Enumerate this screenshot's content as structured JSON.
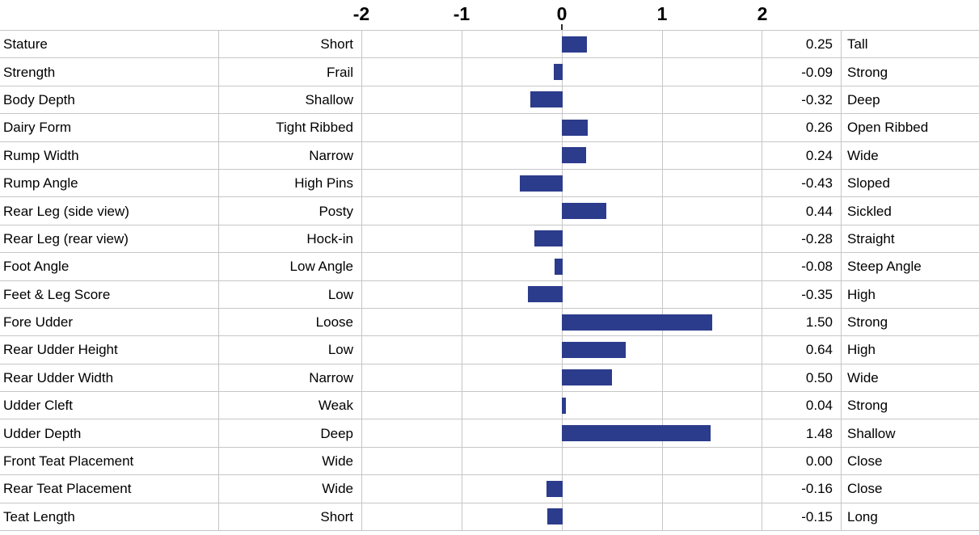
{
  "chart_data": {
    "type": "bar",
    "orientation": "horizontal",
    "title": "",
    "xlabel": "",
    "ylabel": "",
    "xlim": [
      -2,
      2
    ],
    "axis_tick_labels": [
      "-2",
      "-1",
      "0",
      "1",
      "2"
    ],
    "grid": true,
    "bar_color": "#2c3c8c",
    "grid_color": "#c6c6c6",
    "rows": [
      {
        "trait": "Stature",
        "low": "Short",
        "value": 0.25,
        "value_label": "0.25",
        "high": "Tall"
      },
      {
        "trait": "Strength",
        "low": "Frail",
        "value": -0.09,
        "value_label": "-0.09",
        "high": "Strong"
      },
      {
        "trait": "Body Depth",
        "low": "Shallow",
        "value": -0.32,
        "value_label": "-0.32",
        "high": "Deep"
      },
      {
        "trait": "Dairy Form",
        "low": "Tight Ribbed",
        "value": 0.26,
        "value_label": "0.26",
        "high": "Open Ribbed"
      },
      {
        "trait": "Rump Width",
        "low": "Narrow",
        "value": 0.24,
        "value_label": "0.24",
        "high": "Wide"
      },
      {
        "trait": "Rump Angle",
        "low": "High Pins",
        "value": -0.43,
        "value_label": "-0.43",
        "high": "Sloped"
      },
      {
        "trait": "Rear Leg (side view)",
        "low": "Posty",
        "value": 0.44,
        "value_label": "0.44",
        "high": "Sickled"
      },
      {
        "trait": "Rear Leg (rear view)",
        "low": "Hock-in",
        "value": -0.28,
        "value_label": "-0.28",
        "high": "Straight"
      },
      {
        "trait": "Foot Angle",
        "low": "Low Angle",
        "value": -0.08,
        "value_label": "-0.08",
        "high": "Steep Angle"
      },
      {
        "trait": "Feet & Leg Score",
        "low": "Low",
        "value": -0.35,
        "value_label": "-0.35",
        "high": "High"
      },
      {
        "trait": "Fore Udder",
        "low": "Loose",
        "value": 1.5,
        "value_label": "1.50",
        "high": "Strong"
      },
      {
        "trait": "Rear Udder Height",
        "low": "Low",
        "value": 0.64,
        "value_label": "0.64",
        "high": "High"
      },
      {
        "trait": "Rear Udder Width",
        "low": "Narrow",
        "value": 0.5,
        "value_label": "0.50",
        "high": "Wide"
      },
      {
        "trait": "Udder Cleft",
        "low": "Weak",
        "value": 0.04,
        "value_label": "0.04",
        "high": "Strong"
      },
      {
        "trait": "Udder Depth",
        "low": "Deep",
        "value": 1.48,
        "value_label": "1.48",
        "high": "Shallow"
      },
      {
        "trait": "Front Teat Placement",
        "low": "Wide",
        "value": 0.0,
        "value_label": "0.00",
        "high": "Close"
      },
      {
        "trait": "Rear Teat Placement",
        "low": "Wide",
        "value": -0.16,
        "value_label": "-0.16",
        "high": "Close"
      },
      {
        "trait": "Teat Length",
        "low": "Short",
        "value": -0.15,
        "value_label": "-0.15",
        "high": "Long"
      }
    ]
  }
}
